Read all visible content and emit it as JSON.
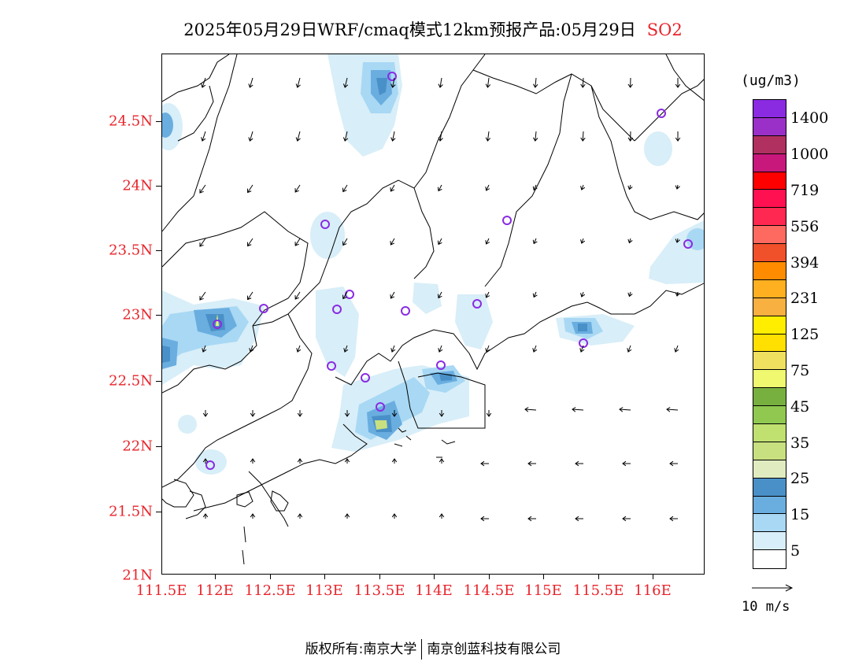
{
  "title": {
    "text": "2025年05月29日WRF/cmaq模式12km预报产品:05月29日",
    "species": "SO2",
    "species_color": "#e8232a"
  },
  "axes": {
    "lat_labels": [
      "24.5N",
      "24N",
      "23.5N",
      "23N",
      "22.5N",
      "22N",
      "21.5N",
      "21N"
    ],
    "lon_labels": [
      "111.5E",
      "112E",
      "112.5E",
      "113E",
      "113.5E",
      "114E",
      "114.5E",
      "115E",
      "115.5E",
      "116E"
    ],
    "label_color": "#e8232a"
  },
  "colorbar": {
    "unit": "(ug/m3)",
    "colors": [
      "#8a2be2",
      "#9b30c8",
      "#b03060",
      "#c8187c",
      "#ff0000",
      "#ff1050",
      "#ff2850",
      "#ff6a60",
      "#f0502a",
      "#ff8c00",
      "#ffb020",
      "#f8b040",
      "#ffee00",
      "#ffe000",
      "#f0e060",
      "#f0f870",
      "#78b040",
      "#90c850",
      "#c0e070",
      "#c8e080",
      "#e0ecc0",
      "#4a90c8",
      "#6aaee0",
      "#a8d8f4",
      "#d8eef8",
      "#ffffff"
    ],
    "labels": [
      "1400",
      "1000",
      "719",
      "556",
      "394",
      "231",
      "125",
      "75",
      "45",
      "35",
      "25",
      "15",
      "5"
    ]
  },
  "wind_reference": {
    "label": "10 m/s"
  },
  "footer": {
    "left": "版权所有:南京大学",
    "right": "南京创蓝科技有限公司"
  }
}
